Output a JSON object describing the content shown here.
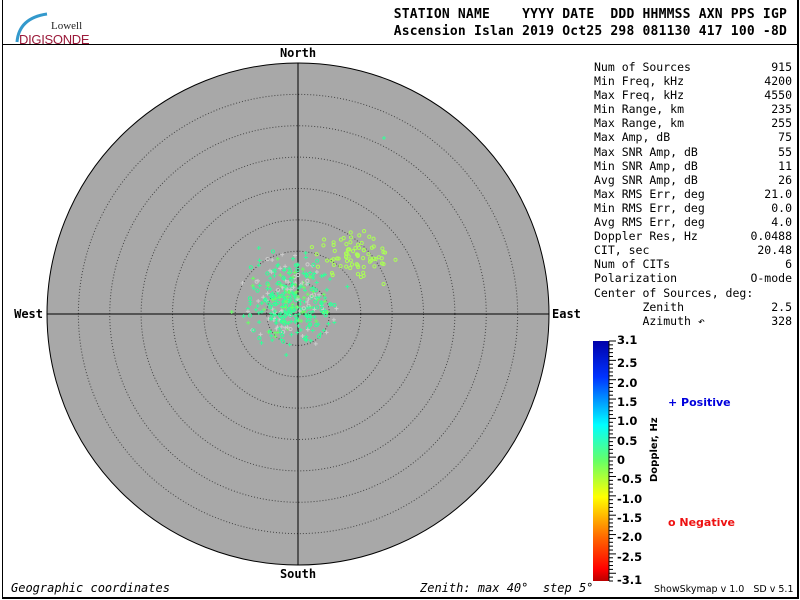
{
  "logo": {
    "top": "Lowell",
    "bottom": "DIGISONDE"
  },
  "header": {
    "line1": "STATION NAME    YYYY DATE  DDD HHMMSS AXN PPS IGP",
    "line2": "Ascension Islan 2019 Oct25 298 081130 417 100 -8D"
  },
  "directions": {
    "north": "North",
    "south": "South",
    "east": "East",
    "west": "West"
  },
  "stats": [
    {
      "label": "Num of Sources",
      "value": "915"
    },
    {
      "label": "Min Freq, kHz",
      "value": "4200"
    },
    {
      "label": "Max Freq, kHz",
      "value": "4550"
    },
    {
      "label": "Min Range, km",
      "value": "235"
    },
    {
      "label": "Max Range, km",
      "value": "255"
    },
    {
      "label": "Max Amp, dB",
      "value": "75"
    },
    {
      "label": "Max SNR Amp, dB",
      "value": "55"
    },
    {
      "label": "Min SNR Amp, dB",
      "value": "11"
    },
    {
      "label": "Avg SNR Amp, dB",
      "value": "26"
    },
    {
      "label": "Max RMS Err, deg",
      "value": "21.0"
    },
    {
      "label": "Min RMS Err, deg",
      "value": "0.0"
    },
    {
      "label": "Avg RMS Err, deg",
      "value": "4.0"
    },
    {
      "label": "Doppler Res, Hz",
      "value": "0.0488"
    },
    {
      "label": "CIT, sec",
      "value": "20.48"
    },
    {
      "label": "Num of CITs",
      "value": "6"
    },
    {
      "label": "Polarization",
      "value": "O-mode"
    },
    {
      "label": "Center of Sources, deg:",
      "value": ""
    },
    {
      "label": "       Zenith",
      "value": "2.5"
    },
    {
      "label": "       Azimuth ↶",
      "value": "328"
    }
  ],
  "colorbar": {
    "title": "Doppler, Hz",
    "ticks": [
      "3.1",
      "2.5",
      "2.0",
      "1.5",
      "1.0",
      "0.5",
      "0",
      "-0.5",
      "-1.0",
      "-1.5",
      "-2.0",
      "-2.5",
      "-3.1"
    ],
    "range": [
      -3.1,
      3.1
    ]
  },
  "legend": {
    "positive": "Positive",
    "negative": "Negative",
    "positive_color": "#0000dd",
    "negative_color": "#ee1111"
  },
  "footer": {
    "left": "Geographic coordinates",
    "center": "Zenith: max 40°  step 5°",
    "right": "ShowSkymap v 1.0   SD v 5.1"
  },
  "chart_data": {
    "type": "scatter",
    "projection": "polar skymap",
    "zenith_max_deg": 40,
    "zenith_step_deg": 5,
    "num_sources": 915,
    "center_of_sources": {
      "zenith_deg": 2.5,
      "azimuth_deg": 328
    },
    "doppler_range_hz": [
      -3.1,
      3.1
    ],
    "plot_background": "#a8a8a8",
    "dominant_point_colors": [
      "#33ff99",
      "#66ff66",
      "#aaff55",
      "#cccccc"
    ]
  }
}
